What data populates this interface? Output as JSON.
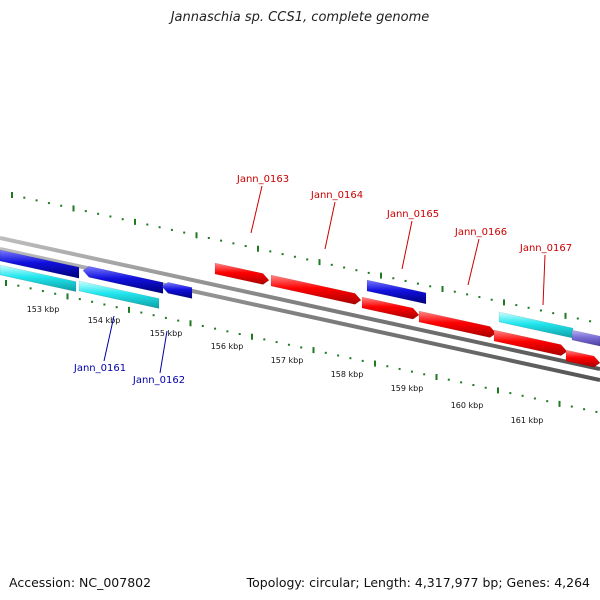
{
  "title": "Jannaschia sp. CCS1, complete genome",
  "footer": {
    "accession": "Accession: NC_007802",
    "summary": "Topology: circular; Length: 4,317,977 bp; Genes: 4,264"
  },
  "colors": {
    "backbone": "#808080",
    "tick": "#1e7a1e",
    "label_red": "#cc0000",
    "label_blue": "#0000aa",
    "gene_red": "#ff0000",
    "gene_blue": "#1010dd",
    "gene_cyan": "#22e6ee",
    "gene_purple": "#7b6fd6"
  },
  "ruler": {
    "labels": [
      "153 kbp",
      "154 kbp",
      "155 kbp",
      "156 kbp",
      "157 kbp",
      "158 kbp",
      "159 kbp",
      "160 kbp",
      "161 kbp"
    ]
  },
  "gene_labels": [
    {
      "text": "Jann_0161",
      "color": "blue"
    },
    {
      "text": "Jann_0162",
      "color": "blue"
    },
    {
      "text": "Jann_0163",
      "color": "red"
    },
    {
      "text": "Jann_0164",
      "color": "red"
    },
    {
      "text": "Jann_0165",
      "color": "red"
    },
    {
      "text": "Jann_0166",
      "color": "red"
    },
    {
      "text": "Jann_0167",
      "color": "red"
    }
  ]
}
